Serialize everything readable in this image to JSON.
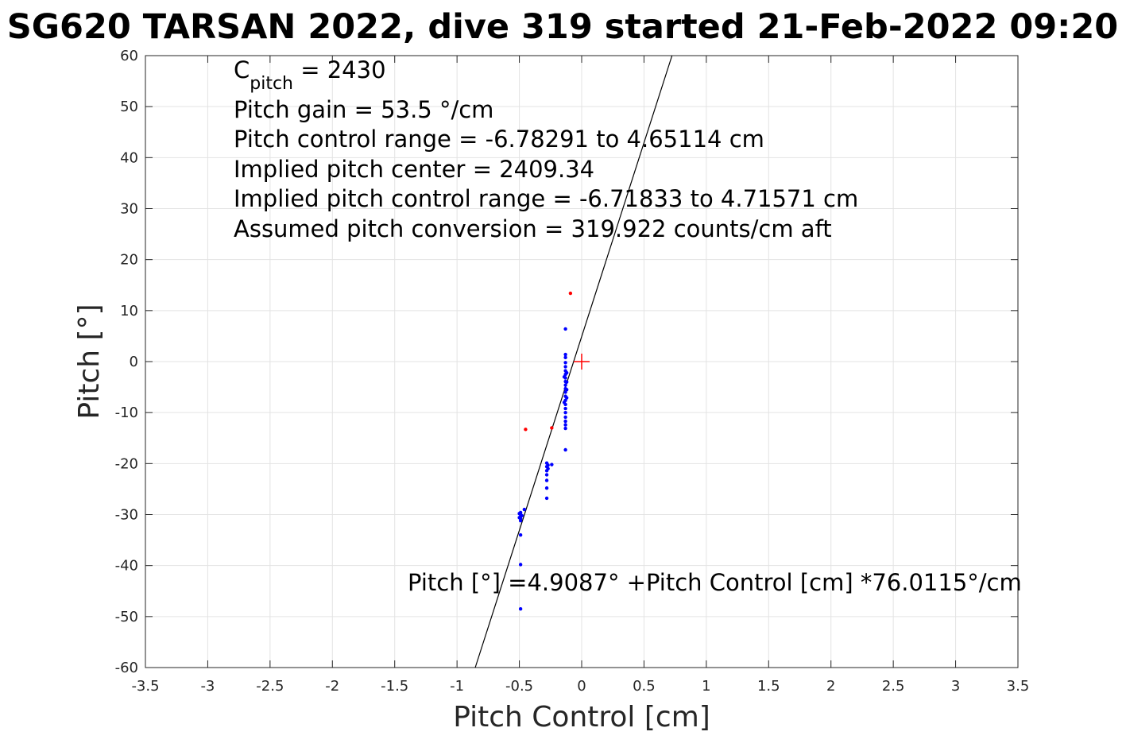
{
  "chart_data": {
    "type": "scatter",
    "title": "SG620 TARSAN 2022, dive 319 started 21-Feb-2022 09:20",
    "xlabel": "Pitch Control [cm]",
    "ylabel": "Pitch [°]",
    "xlim": [
      -3.5,
      3.5
    ],
    "ylim": [
      -60,
      60
    ],
    "grid": true,
    "xticks": [
      -3.5,
      -3,
      -2.5,
      -2,
      -1.5,
      -1,
      -0.5,
      0,
      0.5,
      1,
      1.5,
      2,
      2.5,
      3,
      3.5
    ],
    "xtick_labels": [
      "-3.5",
      "-3",
      "-2.5",
      "-2",
      "-1.5",
      "-1",
      "-0.5",
      "0",
      "0.5",
      "1",
      "1.5",
      "2",
      "2.5",
      "3",
      "3.5"
    ],
    "yticks": [
      60,
      50,
      40,
      30,
      20,
      10,
      0,
      -10,
      -20,
      -30,
      -40,
      -50,
      -60
    ],
    "ytick_labels": [
      "60",
      "50",
      "40",
      "30",
      "20",
      "10",
      "0",
      "-10",
      "-20",
      "-30",
      "-40",
      "-50",
      "-60"
    ],
    "annotations": {
      "c_pitch_symbol": "C",
      "c_pitch_subscript": "pitch",
      "c_pitch_value": " = 2430",
      "lines": [
        "Pitch gain = 53.5 °/cm",
        "Pitch control range = -6.78291 to 4.65114 cm",
        "Implied pitch center = 2409.34",
        "Implied pitch control range = -6.71833 to 4.71571 cm",
        "Assumed pitch conversion = 319.922 counts/cm aft"
      ],
      "fit_equation": "Pitch [°] =4.9087° +Pitch Control [cm] *76.0115°/cm"
    },
    "fit_line": {
      "intercept": 4.9087,
      "slope": 76.0115,
      "color": "#000000"
    },
    "center_marker": {
      "x": 0,
      "y": 0,
      "color": "#ff0000"
    },
    "series": [
      {
        "color": "#0000ff",
        "points": [
          [
            -0.13,
            6.4
          ],
          [
            -0.13,
            1.4
          ],
          [
            -0.13,
            0.8
          ],
          [
            -0.13,
            -0.2
          ],
          [
            -0.13,
            -1.0
          ],
          [
            -0.13,
            -1.8
          ],
          [
            -0.13,
            -2.5
          ],
          [
            -0.13,
            -3.2
          ],
          [
            -0.13,
            -3.9
          ],
          [
            -0.13,
            -4.6
          ],
          [
            -0.13,
            -5.3
          ],
          [
            -0.13,
            -6.0
          ],
          [
            -0.13,
            -6.8
          ],
          [
            -0.13,
            -7.6
          ],
          [
            -0.13,
            -8.4
          ],
          [
            -0.13,
            -9.2
          ],
          [
            -0.13,
            -10.0
          ],
          [
            -0.13,
            -10.9
          ],
          [
            -0.13,
            -11.7
          ],
          [
            -0.13,
            -12.4
          ],
          [
            -0.13,
            -13.1
          ],
          [
            -0.13,
            -17.3
          ],
          [
            -0.12,
            -2.2
          ],
          [
            -0.12,
            -4.0
          ],
          [
            -0.12,
            -5.5
          ],
          [
            -0.12,
            -7.1
          ],
          [
            -0.14,
            -3.0
          ],
          [
            -0.14,
            -8.0
          ],
          [
            -0.24,
            -20.2
          ],
          [
            -0.28,
            -19.9
          ],
          [
            -0.28,
            -20.6
          ],
          [
            -0.28,
            -21.4
          ],
          [
            -0.28,
            -22.2
          ],
          [
            -0.28,
            -23.3
          ],
          [
            -0.28,
            -24.8
          ],
          [
            -0.28,
            -26.8
          ],
          [
            -0.27,
            -20.3
          ],
          [
            -0.27,
            -21.0
          ],
          [
            -0.46,
            -29.0
          ],
          [
            -0.49,
            -29.6
          ],
          [
            -0.49,
            -30.0
          ],
          [
            -0.49,
            -30.4
          ],
          [
            -0.49,
            -30.8
          ],
          [
            -0.49,
            -31.2
          ],
          [
            -0.5,
            -29.8
          ],
          [
            -0.5,
            -30.6
          ],
          [
            -0.48,
            -30.2
          ],
          [
            -0.49,
            -34.0
          ],
          [
            -0.49,
            -39.8
          ],
          [
            -0.49,
            -48.5
          ]
        ]
      },
      {
        "color": "#ff0000",
        "points": [
          [
            -0.09,
            13.4
          ],
          [
            -0.45,
            -13.3
          ],
          [
            -0.24,
            -13.0
          ]
        ]
      }
    ]
  }
}
